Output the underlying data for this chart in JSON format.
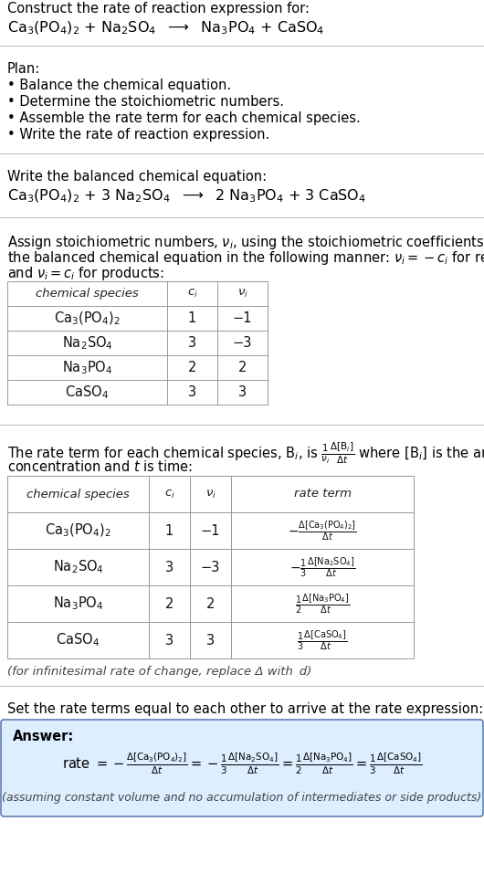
{
  "bg_color": "#ffffff",
  "text_color": "#000000",
  "title_line1": "Construct the rate of reaction expression for:",
  "table1_headers": [
    "chemical species",
    "c_i",
    "v_i"
  ],
  "table1_rows": [
    [
      "Ca3(PO4)2",
      "1",
      "-1"
    ],
    [
      "Na2SO4",
      "3",
      "-3"
    ],
    [
      "Na3PO4",
      "2",
      "2"
    ],
    [
      "CaSO4",
      "3",
      "3"
    ]
  ],
  "table2_headers": [
    "chemical species",
    "c_i",
    "v_i",
    "rate term"
  ],
  "table2_rows": [
    [
      "Ca3(PO4)2",
      "1",
      "-1",
      "rt1"
    ],
    [
      "Na2SO4",
      "3",
      "-3",
      "rt2"
    ],
    [
      "Na3PO4",
      "2",
      "2",
      "rt3"
    ],
    [
      "CaSO4",
      "3",
      "3",
      "rt4"
    ]
  ],
  "answer_box_color": "#ddeeff",
  "answer_box_border": "#4466aa",
  "assuming_note": "(assuming constant volume and no accumulation of intermediates or side products)"
}
